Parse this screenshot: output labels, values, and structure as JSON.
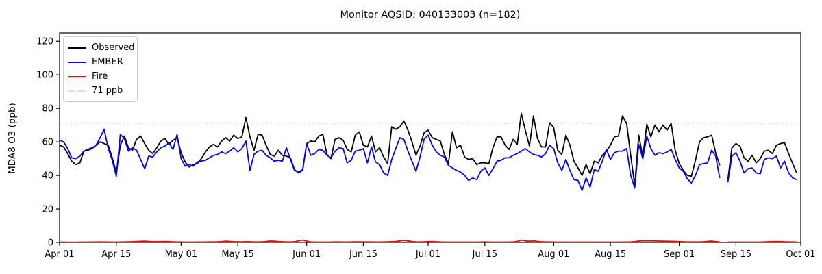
{
  "chart_data": {
    "type": "line",
    "title": "Monitor AQSID: 040133003 (n=182)",
    "ylabel": "MDA8 O3 (ppb)",
    "xlabel": "",
    "ylim": [
      0,
      125
    ],
    "yticks": [
      0,
      20,
      40,
      60,
      80,
      100,
      120
    ],
    "grid": false,
    "x_total_days": 183,
    "x_tick_labels": [
      "Apr 01",
      "Apr 15",
      "May 01",
      "May 15",
      "Jun 01",
      "Jun 15",
      "Jul 01",
      "Jul 15",
      "Aug 01",
      "Aug 15",
      "Sep 01",
      "Sep 15",
      "Oct 01"
    ],
    "x_tick_day_index": [
      0,
      14,
      30,
      44,
      61,
      75,
      91,
      105,
      122,
      136,
      153,
      167,
      183
    ],
    "x_range_note": "daily values Apr 01 - Sep 30, one missing day (Sep 12) -> n=182",
    "threshold": {
      "value": 71,
      "label": "71 ppb",
      "color": "#d3d3d3"
    },
    "legend_position": "upper left",
    "series": [
      {
        "name": "Observed",
        "color": "#000000",
        "values": [
          58,
          57,
          53,
          48.5,
          46.5,
          47.5,
          54.5,
          55.5,
          56.5,
          58,
          60,
          59,
          58,
          50.5,
          41.5,
          58,
          63.5,
          56.5,
          55,
          61.5,
          63.5,
          59,
          55,
          53,
          56.5,
          60.5,
          62,
          58.5,
          61,
          62.5,
          53.5,
          48,
          45,
          46.5,
          47,
          50,
          54,
          57,
          58.5,
          57,
          60.5,
          62.5,
          60.5,
          64,
          62,
          63,
          74.5,
          63,
          55,
          64.5,
          64,
          58,
          52.5,
          51.5,
          55,
          52,
          51.5,
          50.5,
          43.5,
          41.5,
          43,
          59,
          60.5,
          60,
          63.5,
          64.5,
          52.5,
          50,
          61.5,
          62.5,
          61,
          55.5,
          54,
          64,
          66,
          58,
          57,
          63.5,
          54,
          56.5,
          51,
          47,
          69,
          67.5,
          69,
          72.5,
          67,
          60,
          52,
          57.5,
          65.5,
          67,
          62.5,
          61.5,
          60.5,
          52.5,
          47,
          66,
          56.5,
          58,
          51,
          49.5,
          50,
          46.5,
          47.5,
          47.5,
          47,
          56.5,
          63,
          63,
          58,
          55.5,
          61.5,
          58.5,
          77,
          67,
          57.5,
          75.5,
          62,
          57,
          57,
          71.5,
          68.5,
          55,
          52.5,
          64,
          58,
          48.5,
          44.5,
          40,
          46.5,
          41,
          48.5,
          47.5,
          52,
          54.5,
          58,
          63,
          63.5,
          75.5,
          71,
          52,
          34,
          64,
          51,
          70.5,
          63,
          70,
          66,
          70,
          67,
          71,
          55,
          47,
          43,
          40,
          39.5,
          49,
          60,
          62.5,
          63,
          64,
          53.5,
          46,
          null,
          37.5,
          56.5,
          59,
          57.5,
          50.5,
          48.5,
          52,
          47.5,
          50,
          54.5,
          55,
          53,
          58,
          59,
          59.5,
          53,
          47,
          41.5
        ]
      },
      {
        "name": "EMBER",
        "color": "#0000ff",
        "values": [
          61,
          60,
          56,
          50.5,
          50,
          51.5,
          54.5,
          55,
          56,
          58,
          62.5,
          67.5,
          56,
          49,
          39.5,
          64.5,
          62,
          54.5,
          56.5,
          55,
          49.5,
          44,
          51.5,
          51,
          54,
          56.5,
          57.5,
          59.5,
          55.5,
          64.5,
          50,
          45.5,
          46.5,
          45.5,
          48,
          48.5,
          49,
          50.5,
          52,
          52.5,
          54,
          53,
          54.5,
          56.5,
          54,
          56,
          60.5,
          43,
          52.5,
          54.5,
          55,
          52,
          50.5,
          48.5,
          49,
          48.5,
          56.5,
          49.5,
          43,
          42,
          43.5,
          59,
          52,
          53,
          55.5,
          55,
          52,
          50.5,
          54.5,
          56.5,
          56,
          47.5,
          49,
          54.5,
          55,
          56,
          47.5,
          57,
          48,
          46.5,
          41.5,
          40,
          49.5,
          56,
          62.5,
          61.5,
          54.5,
          48.5,
          42.5,
          51,
          61.5,
          64,
          58,
          54,
          52,
          51,
          46,
          44.5,
          43,
          42,
          40,
          37,
          38.5,
          37.5,
          42.5,
          44.5,
          40,
          44,
          48.5,
          49,
          50.5,
          50.5,
          52,
          53,
          54.5,
          56,
          54,
          52.5,
          52,
          51,
          53,
          58,
          56,
          47.5,
          43,
          49.5,
          43,
          37.5,
          37,
          31,
          38.5,
          33,
          43.5,
          42.5,
          48.5,
          55.5,
          49.5,
          53.5,
          54.5,
          54.5,
          56,
          40,
          32.5,
          58.5,
          50,
          63.5,
          56,
          52,
          53.5,
          53,
          54,
          55.5,
          49.5,
          44.5,
          42.5,
          38,
          35.5,
          40,
          46.5,
          47,
          47.5,
          55,
          51.5,
          38.5,
          null,
          36,
          51.5,
          53.5,
          48.5,
          41.5,
          44,
          44.5,
          41.5,
          41,
          49.5,
          50.5,
          50,
          51.5,
          44.5,
          48.5,
          41.5,
          38.5,
          37.5
        ]
      },
      {
        "name": "Fire",
        "color": "#ff0000",
        "values": [
          0.2,
          0.2,
          0.15,
          0.15,
          0.15,
          0.2,
          0.2,
          0.2,
          0.25,
          0.25,
          0.3,
          0.3,
          0.25,
          0.2,
          0.2,
          0.25,
          0.3,
          0.35,
          0.45,
          0.55,
          0.65,
          0.75,
          0.6,
          0.45,
          0.45,
          0.5,
          0.55,
          0.5,
          0.35,
          0.3,
          0.25,
          0.2,
          0.2,
          0.2,
          0.25,
          0.25,
          0.25,
          0.3,
          0.3,
          0.35,
          0.5,
          0.75,
          0.6,
          0.45,
          0.35,
          0.35,
          0.45,
          0.4,
          0.3,
          0.3,
          0.35,
          0.55,
          0.85,
          0.75,
          0.55,
          0.4,
          0.3,
          0.3,
          0.4,
          0.9,
          1.4,
          0.8,
          0.3,
          0.25,
          0.2,
          0.2,
          0.2,
          0.25,
          0.3,
          0.3,
          0.25,
          0.25,
          0.3,
          0.35,
          0.35,
          0.3,
          0.3,
          0.3,
          0.25,
          0.25,
          0.3,
          0.35,
          0.45,
          0.55,
          0.9,
          1.2,
          0.9,
          0.55,
          0.35,
          0.3,
          0.35,
          0.5,
          0.55,
          0.4,
          0.3,
          0.25,
          0.2,
          0.2,
          0.2,
          0.2,
          0.2,
          0.2,
          0.2,
          0.2,
          0.25,
          0.3,
          0.25,
          0.2,
          0.2,
          0.2,
          0.2,
          0.25,
          0.3,
          0.6,
          1.4,
          0.9,
          0.7,
          1.0,
          0.6,
          0.4,
          0.3,
          0.3,
          0.25,
          0.2,
          0.2,
          0.2,
          0.2,
          0.2,
          0.2,
          0.2,
          0.2,
          0.2,
          0.2,
          0.2,
          0.2,
          0.2,
          0.2,
          0.2,
          0.2,
          0.25,
          0.25,
          0.3,
          0.5,
          0.8,
          0.95,
          1.0,
          0.95,
          0.85,
          0.8,
          0.75,
          0.7,
          0.65,
          0.6,
          0.5,
          0.4,
          0.3,
          0.3,
          0.3,
          0.3,
          0.4,
          0.6,
          0.8,
          0.5,
          0.3,
          null,
          0.2,
          0.2,
          0.2,
          0.2,
          0.2,
          0.2,
          0.2,
          0.2,
          0.2,
          0.3,
          0.4,
          0.5,
          0.55,
          0.5,
          0.4,
          0.3,
          0.3,
          0.2
        ]
      }
    ],
    "legend": [
      "Observed",
      "EMBER",
      "Fire",
      "71 ppb"
    ]
  },
  "layout_colors": {
    "background": "#ffffff",
    "spine": "#000000",
    "legend_border": "#cccccc"
  }
}
